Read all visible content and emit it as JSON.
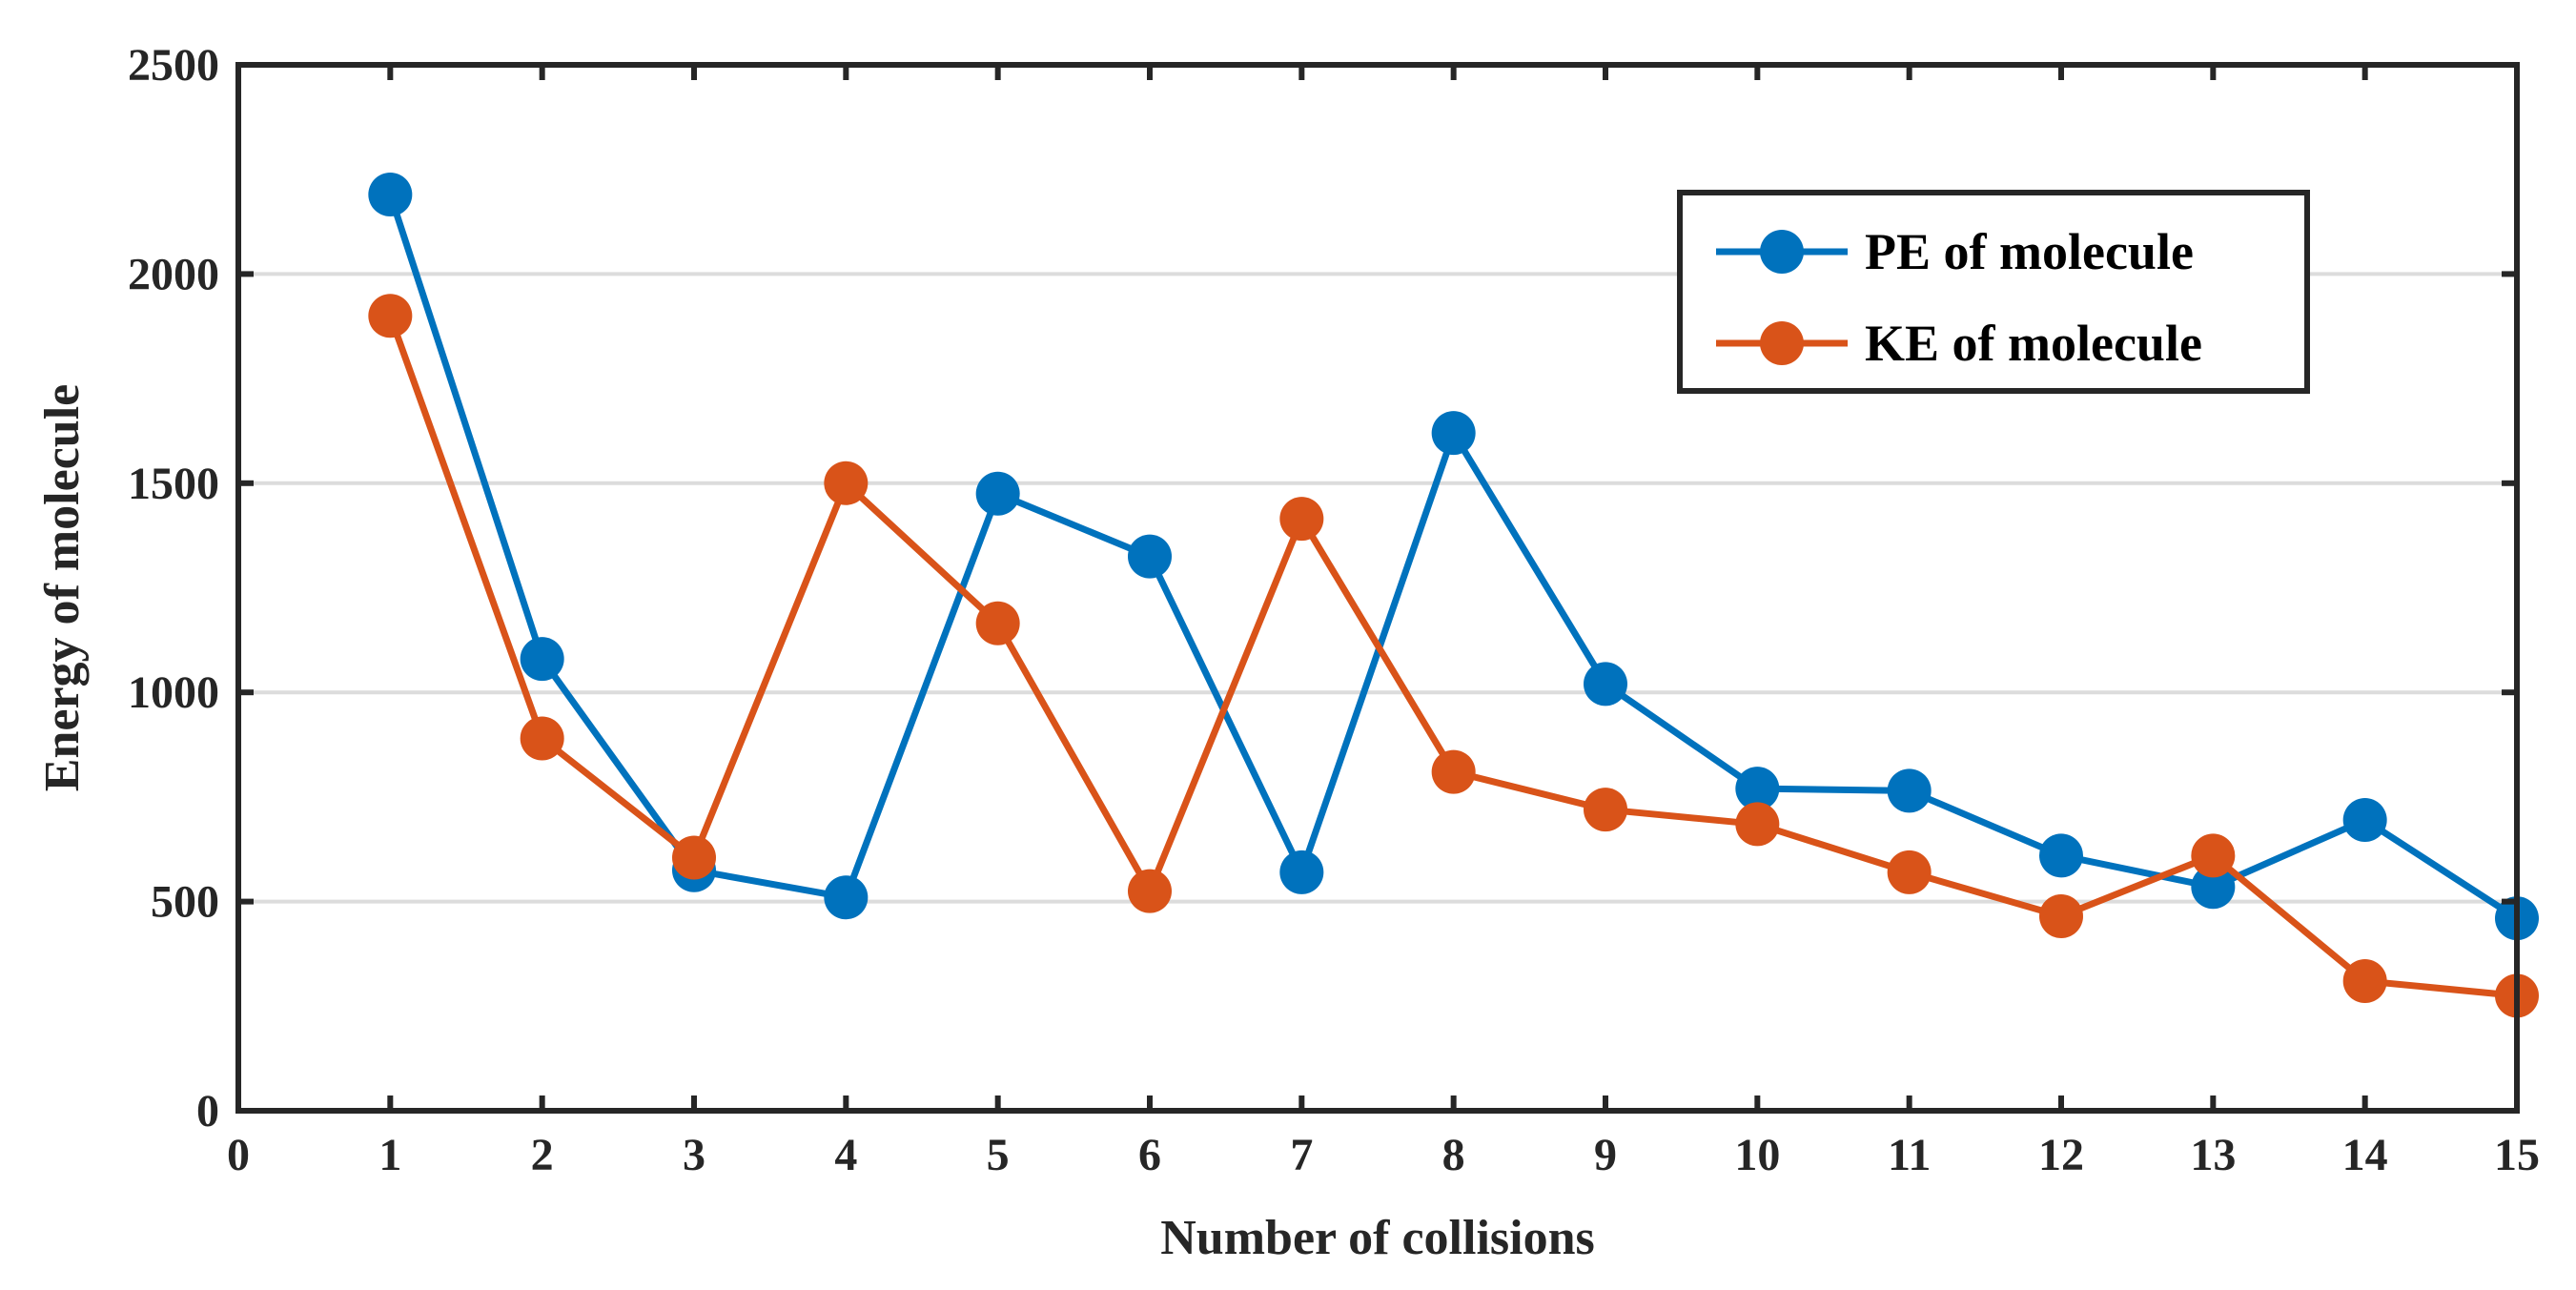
{
  "chart_data": {
    "type": "line",
    "title": "",
    "xlabel": "Number of collisions",
    "ylabel": "Energy of molecule",
    "xlim": [
      0,
      15
    ],
    "ylim": [
      0,
      2500
    ],
    "xticks": [
      0,
      1,
      2,
      3,
      4,
      5,
      6,
      7,
      8,
      9,
      10,
      11,
      12,
      13,
      14,
      15
    ],
    "yticks": [
      0,
      500,
      1000,
      1500,
      2000,
      2500
    ],
    "grid": "horizontal",
    "legend_position": "top-right",
    "x": [
      1,
      2,
      3,
      4,
      5,
      6,
      7,
      8,
      9,
      10,
      11,
      12,
      13,
      14,
      15
    ],
    "series": [
      {
        "name": "PE of molecule",
        "color": "#0072BD",
        "values": [
          2190,
          1080,
          575,
          510,
          1475,
          1325,
          570,
          1620,
          1020,
          770,
          765,
          610,
          535,
          695,
          460
        ]
      },
      {
        "name": "KE of molecule",
        "color": "#D95319",
        "values": [
          1900,
          890,
          605,
          1500,
          1165,
          525,
          1415,
          810,
          720,
          685,
          570,
          465,
          610,
          310,
          275
        ]
      }
    ]
  }
}
